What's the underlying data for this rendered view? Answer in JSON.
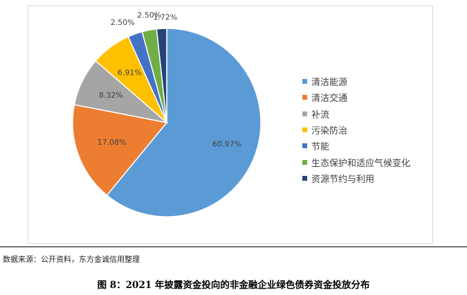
{
  "chart_data": {
    "type": "pie",
    "title": "",
    "categories": [
      "清洁能源",
      "清洁交通",
      "补流",
      "污染防治",
      "节能",
      "生态保护和适应气候变化",
      "资源节约与利用"
    ],
    "values": [
      60.97,
      17.08,
      8.32,
      6.91,
      2.5,
      2.5,
      1.72
    ],
    "data_labels": [
      "60.97%",
      "17.08%",
      "8.32%",
      "6.91%",
      "2.50%",
      "2.50%",
      "1.72%"
    ],
    "colors": [
      "#5b9bd5",
      "#ed7d31",
      "#a5a5a5",
      "#ffc000",
      "#4472c4",
      "#70ad47",
      "#264478"
    ],
    "legend_position": "right"
  },
  "source_note": "数据来源：公开资料，东方金诚信用整理",
  "figure_caption": "图 8：2021 年披露资金投向的非金融企业绿色债券资金投放分布"
}
